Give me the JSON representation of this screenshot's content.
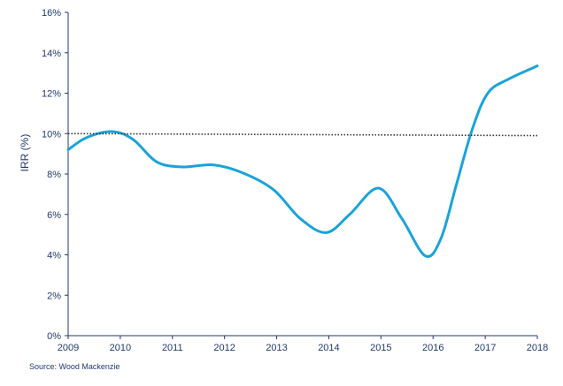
{
  "chart_data": {
    "type": "line",
    "title": "",
    "xlabel": "",
    "ylabel": "IRR  (%)",
    "x": [
      2009,
      2010,
      2011,
      2012,
      2013,
      2014,
      2015,
      2016,
      2017,
      2018
    ],
    "x_tick_labels": [
      "2009",
      "2010",
      "2011",
      "2012",
      "2013",
      "2014",
      "2015",
      "2016",
      "2017",
      "2018"
    ],
    "y_tick_labels": [
      "0%",
      "2%",
      "4%",
      "6%",
      "8%",
      "10%",
      "12%",
      "14%",
      "16%"
    ],
    "ylim": [
      0,
      16
    ],
    "xlim": [
      2009,
      2018
    ],
    "grid": false,
    "series": [
      {
        "color": "#1aa3d9",
        "style": "smooth-solid",
        "points": [
          [
            2009.0,
            9.2
          ],
          [
            2009.35,
            9.8
          ],
          [
            2009.85,
            10.1
          ],
          [
            2010.25,
            9.7
          ],
          [
            2010.7,
            8.6
          ],
          [
            2011.2,
            8.35
          ],
          [
            2011.8,
            8.45
          ],
          [
            2012.4,
            8.0
          ],
          [
            2012.95,
            7.2
          ],
          [
            2013.45,
            5.8
          ],
          [
            2013.95,
            5.1
          ],
          [
            2014.4,
            6.0
          ],
          [
            2014.95,
            7.3
          ],
          [
            2015.4,
            5.8
          ],
          [
            2015.85,
            3.95
          ],
          [
            2016.15,
            4.8
          ],
          [
            2016.45,
            7.5
          ],
          [
            2016.75,
            10.2
          ],
          [
            2017.05,
            12.0
          ],
          [
            2017.45,
            12.7
          ],
          [
            2018.0,
            13.35
          ]
        ]
      },
      {
        "color": "#333333",
        "style": "dotted",
        "points": [
          [
            2009.0,
            10.0
          ],
          [
            2018.0,
            9.9
          ]
        ]
      }
    ],
    "colors": {
      "axis": "#1f3a6b",
      "text": "#1f3a6b"
    }
  },
  "footer": {
    "source": "Source: Wood Mackenzie"
  }
}
